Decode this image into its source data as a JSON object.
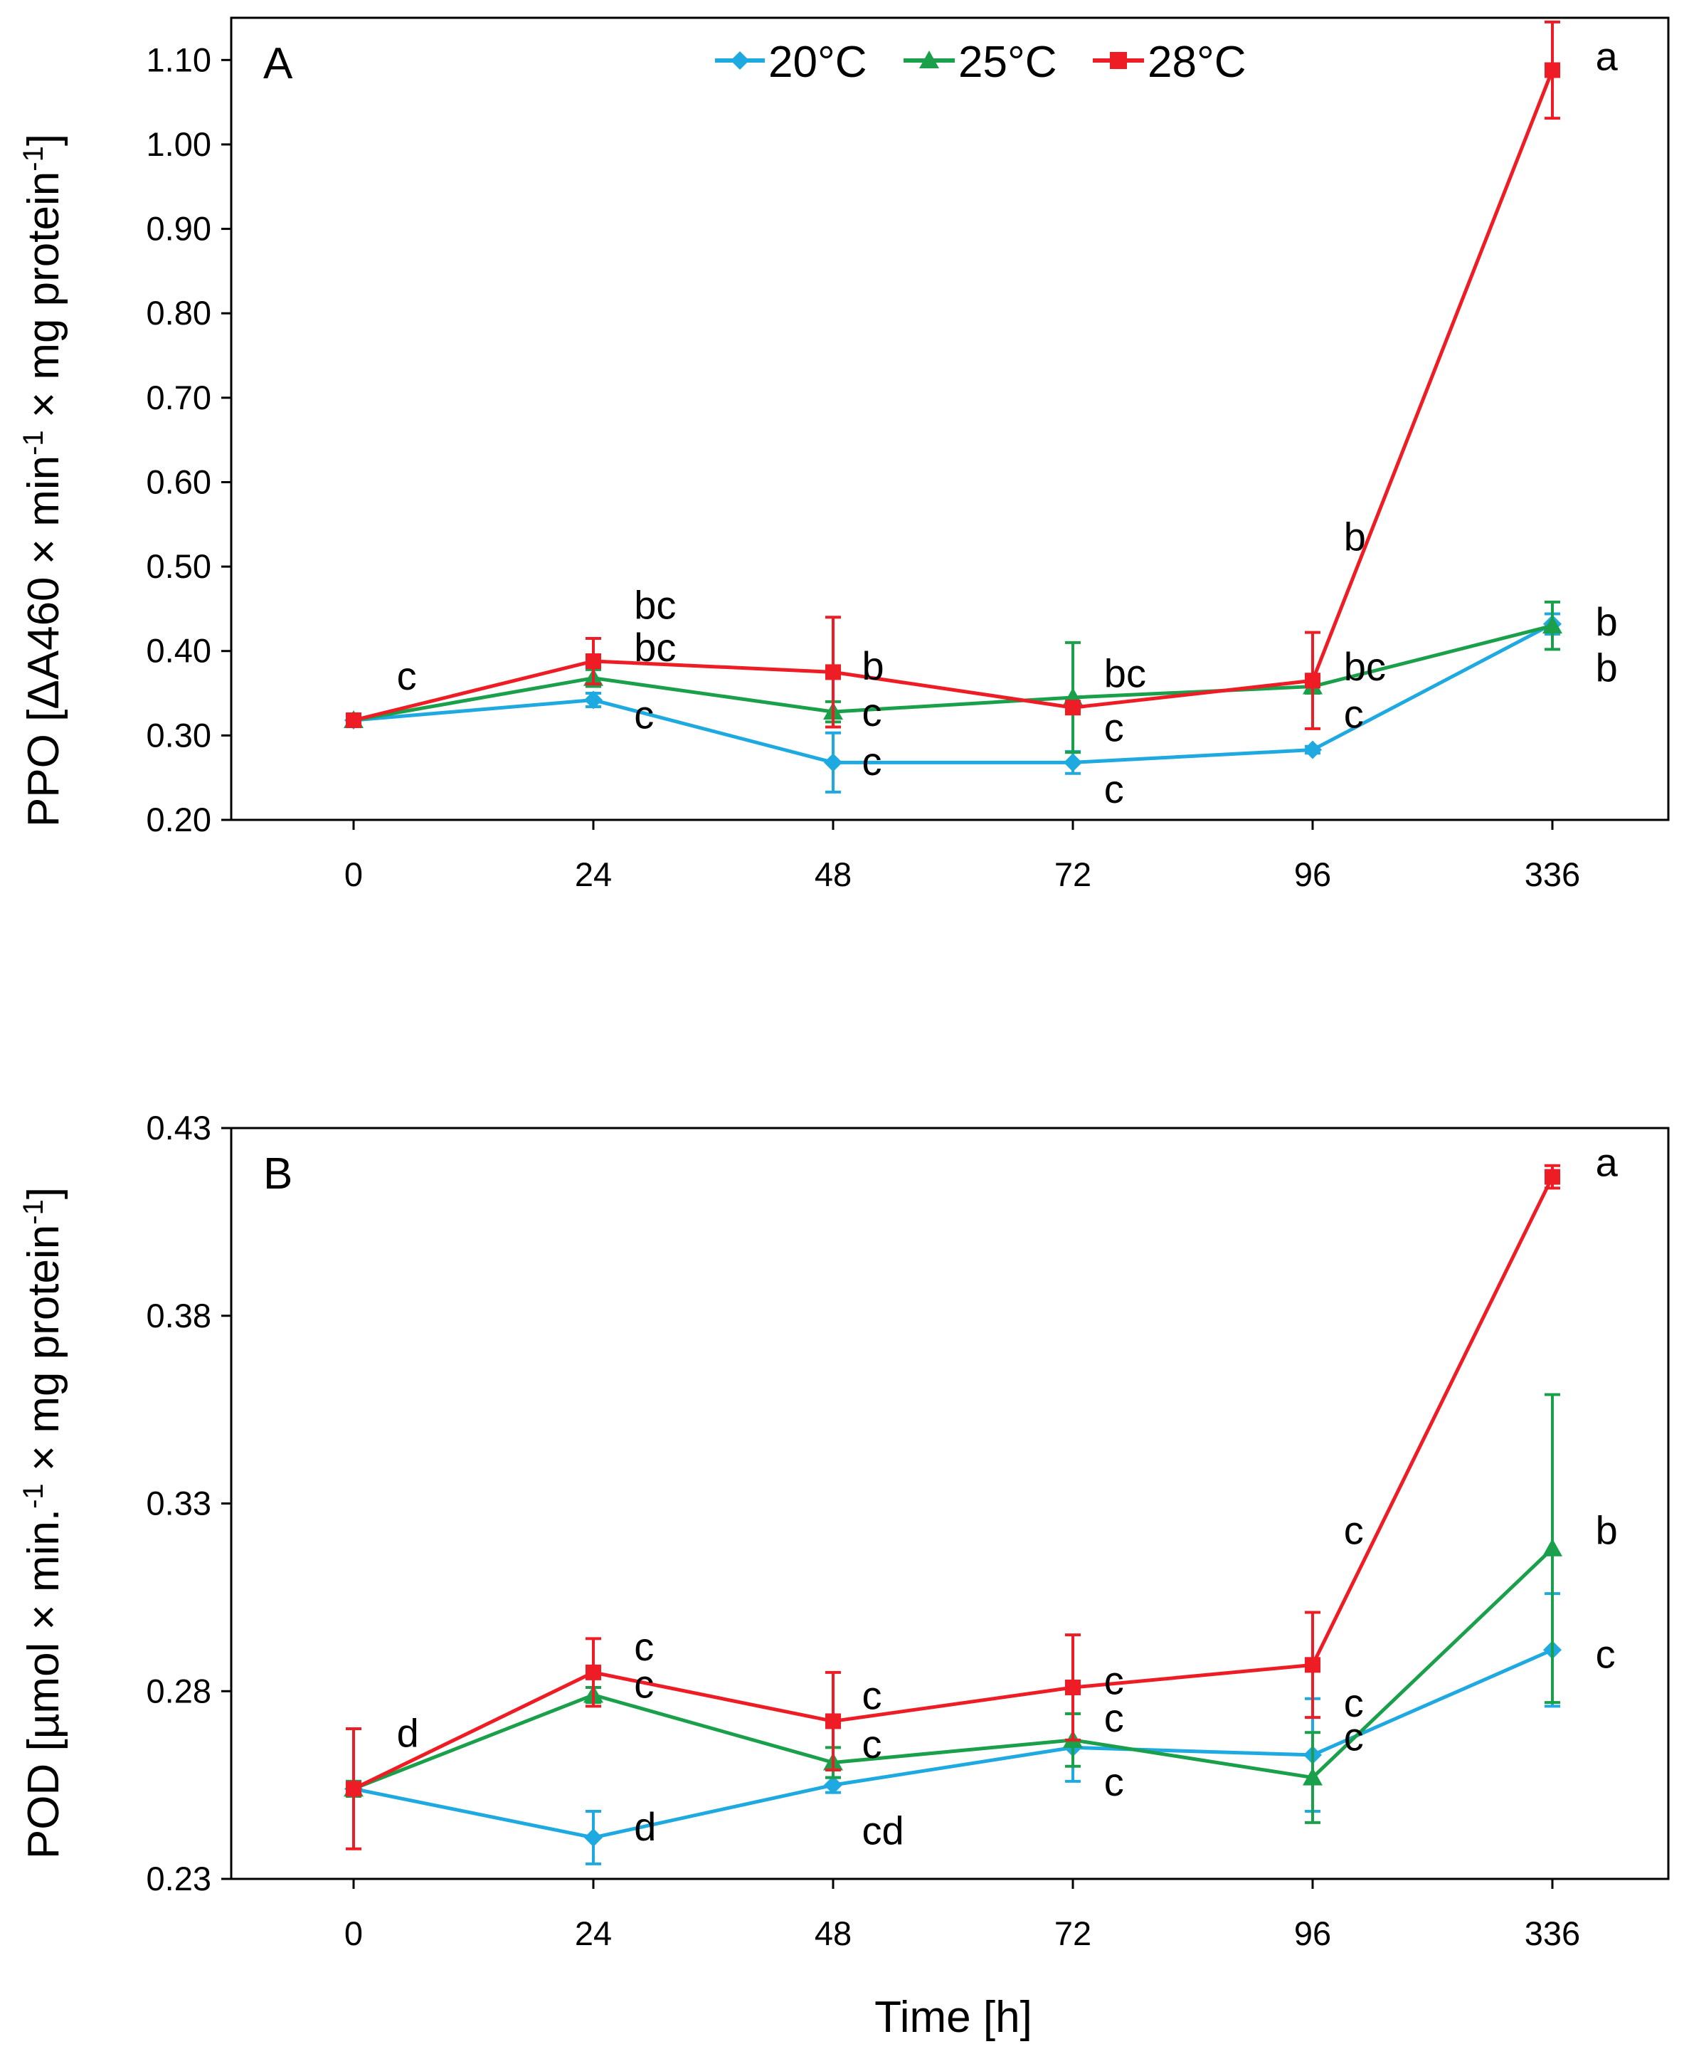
{
  "series_colors": {
    "20°C": "#1fa9e1",
    "25°C": "#1aa04a",
    "28°C": "#ee1c24"
  },
  "legend": [
    "20°C",
    "25°C",
    "28°C"
  ],
  "chart_data": [
    {
      "type": "line",
      "panel": "A",
      "title": "",
      "xlabel": "",
      "ylabel": "PPO [ΔA460 × min⁻¹ × mg protein⁻¹]",
      "ylabel_parts": [
        "PPO [ΔA460 × min",
        "-1",
        " × mg protein",
        "-1",
        "]"
      ],
      "categories": [
        "0",
        "24",
        "48",
        "72",
        "96",
        "336"
      ],
      "yticks": [
        "0.20",
        "0.30",
        "0.40",
        "0.50",
        "0.60",
        "0.70",
        "0.80",
        "0.90",
        "1.00",
        "1.10"
      ],
      "ylim": [
        0.2,
        1.15
      ],
      "series": [
        {
          "name": "20°C",
          "marker": "diamond",
          "values": [
            0.318,
            0.342,
            0.268,
            0.268,
            0.283,
            0.432
          ],
          "errors": [
            0.004,
            0.008,
            0.035,
            0.013,
            0.004,
            0.012
          ]
        },
        {
          "name": "25°C",
          "marker": "triangle",
          "values": [
            0.318,
            0.368,
            0.328,
            0.345,
            0.358,
            0.43
          ],
          "errors": [
            0.004,
            0.01,
            0.012,
            0.065,
            0.008,
            0.028
          ]
        },
        {
          "name": "28°C",
          "marker": "square",
          "values": [
            0.318,
            0.388,
            0.375,
            0.333,
            0.365,
            1.088
          ],
          "errors": [
            0.004,
            0.027,
            0.065,
            0.005,
            0.057,
            0.057
          ]
        }
      ],
      "annotations": [
        {
          "text": "c",
          "x": 0.18,
          "y": 0.371
        },
        {
          "text": "bc",
          "x": 1.17,
          "y": 0.455
        },
        {
          "text": "bc",
          "x": 1.17,
          "y": 0.405
        },
        {
          "text": "c",
          "x": 1.17,
          "y": 0.325
        },
        {
          "text": "b",
          "x": 2.12,
          "y": 0.383
        },
        {
          "text": "c",
          "x": 2.12,
          "y": 0.328
        },
        {
          "text": "c",
          "x": 2.12,
          "y": 0.27
        },
        {
          "text": "bc",
          "x": 3.13,
          "y": 0.374
        },
        {
          "text": "c",
          "x": 3.13,
          "y": 0.31
        },
        {
          "text": "c",
          "x": 3.13,
          "y": 0.237
        },
        {
          "text": "b",
          "x": 4.13,
          "y": 0.536
        },
        {
          "text": "bc",
          "x": 4.13,
          "y": 0.382
        },
        {
          "text": "c",
          "x": 4.13,
          "y": 0.326
        },
        {
          "text": "a",
          "x": 5.18,
          "y": 1.105
        },
        {
          "text": "b",
          "x": 5.18,
          "y": 0.435
        },
        {
          "text": "b",
          "x": 5.18,
          "y": 0.381
        }
      ]
    },
    {
      "type": "line",
      "panel": "B",
      "title": "",
      "xlabel": "Time [h]",
      "ylabel": "POD [µmol × min.⁻¹ × mg protein⁻¹]",
      "ylabel_parts": [
        "POD [µmol × min.",
        "-1",
        " × mg protein",
        "-1",
        "]"
      ],
      "categories": [
        "0",
        "24",
        "48",
        "72",
        "96",
        "336"
      ],
      "yticks": [
        "0.23",
        "0.28",
        "0.33",
        "0.38",
        "0.43"
      ],
      "ylim": [
        0.23,
        0.43
      ],
      "series": [
        {
          "name": "20°C",
          "marker": "diamond",
          "values": [
            0.254,
            0.241,
            0.255,
            0.265,
            0.263,
            0.291
          ],
          "errors": [
            0.002,
            0.007,
            0.002,
            0.009,
            0.015,
            0.015
          ]
        },
        {
          "name": "25°C",
          "marker": "triangle",
          "values": [
            0.254,
            0.279,
            0.261,
            0.267,
            0.257,
            0.318
          ],
          "errors": [
            0.002,
            0.002,
            0.004,
            0.007,
            0.012,
            0.041
          ]
        },
        {
          "name": "28°C",
          "marker": "square",
          "values": [
            0.254,
            0.285,
            0.272,
            0.281,
            0.287,
            0.417
          ],
          "errors": [
            0.016,
            0.009,
            0.013,
            0.014,
            0.014,
            0.003
          ]
        }
      ],
      "annotations": [
        {
          "text": "d",
          "x": 0.18,
          "y": 0.269
        },
        {
          "text": "c",
          "x": 1.17,
          "y": 0.292
        },
        {
          "text": "c",
          "x": 1.17,
          "y": 0.282
        },
        {
          "text": "d",
          "x": 1.17,
          "y": 0.244
        },
        {
          "text": "c",
          "x": 2.12,
          "y": 0.279
        },
        {
          "text": "c",
          "x": 2.12,
          "y": 0.266
        },
        {
          "text": "cd",
          "x": 2.12,
          "y": 0.243
        },
        {
          "text": "c",
          "x": 3.13,
          "y": 0.283
        },
        {
          "text": "c",
          "x": 3.13,
          "y": 0.273
        },
        {
          "text": "c",
          "x": 3.13,
          "y": 0.256
        },
        {
          "text": "c",
          "x": 4.13,
          "y": 0.323
        },
        {
          "text": "c",
          "x": 4.13,
          "y": 0.277
        },
        {
          "text": "c",
          "x": 4.13,
          "y": 0.268
        },
        {
          "text": "a",
          "x": 5.18,
          "y": 0.421
        },
        {
          "text": "b",
          "x": 5.18,
          "y": 0.323
        },
        {
          "text": "c",
          "x": 5.18,
          "y": 0.29
        }
      ]
    }
  ]
}
